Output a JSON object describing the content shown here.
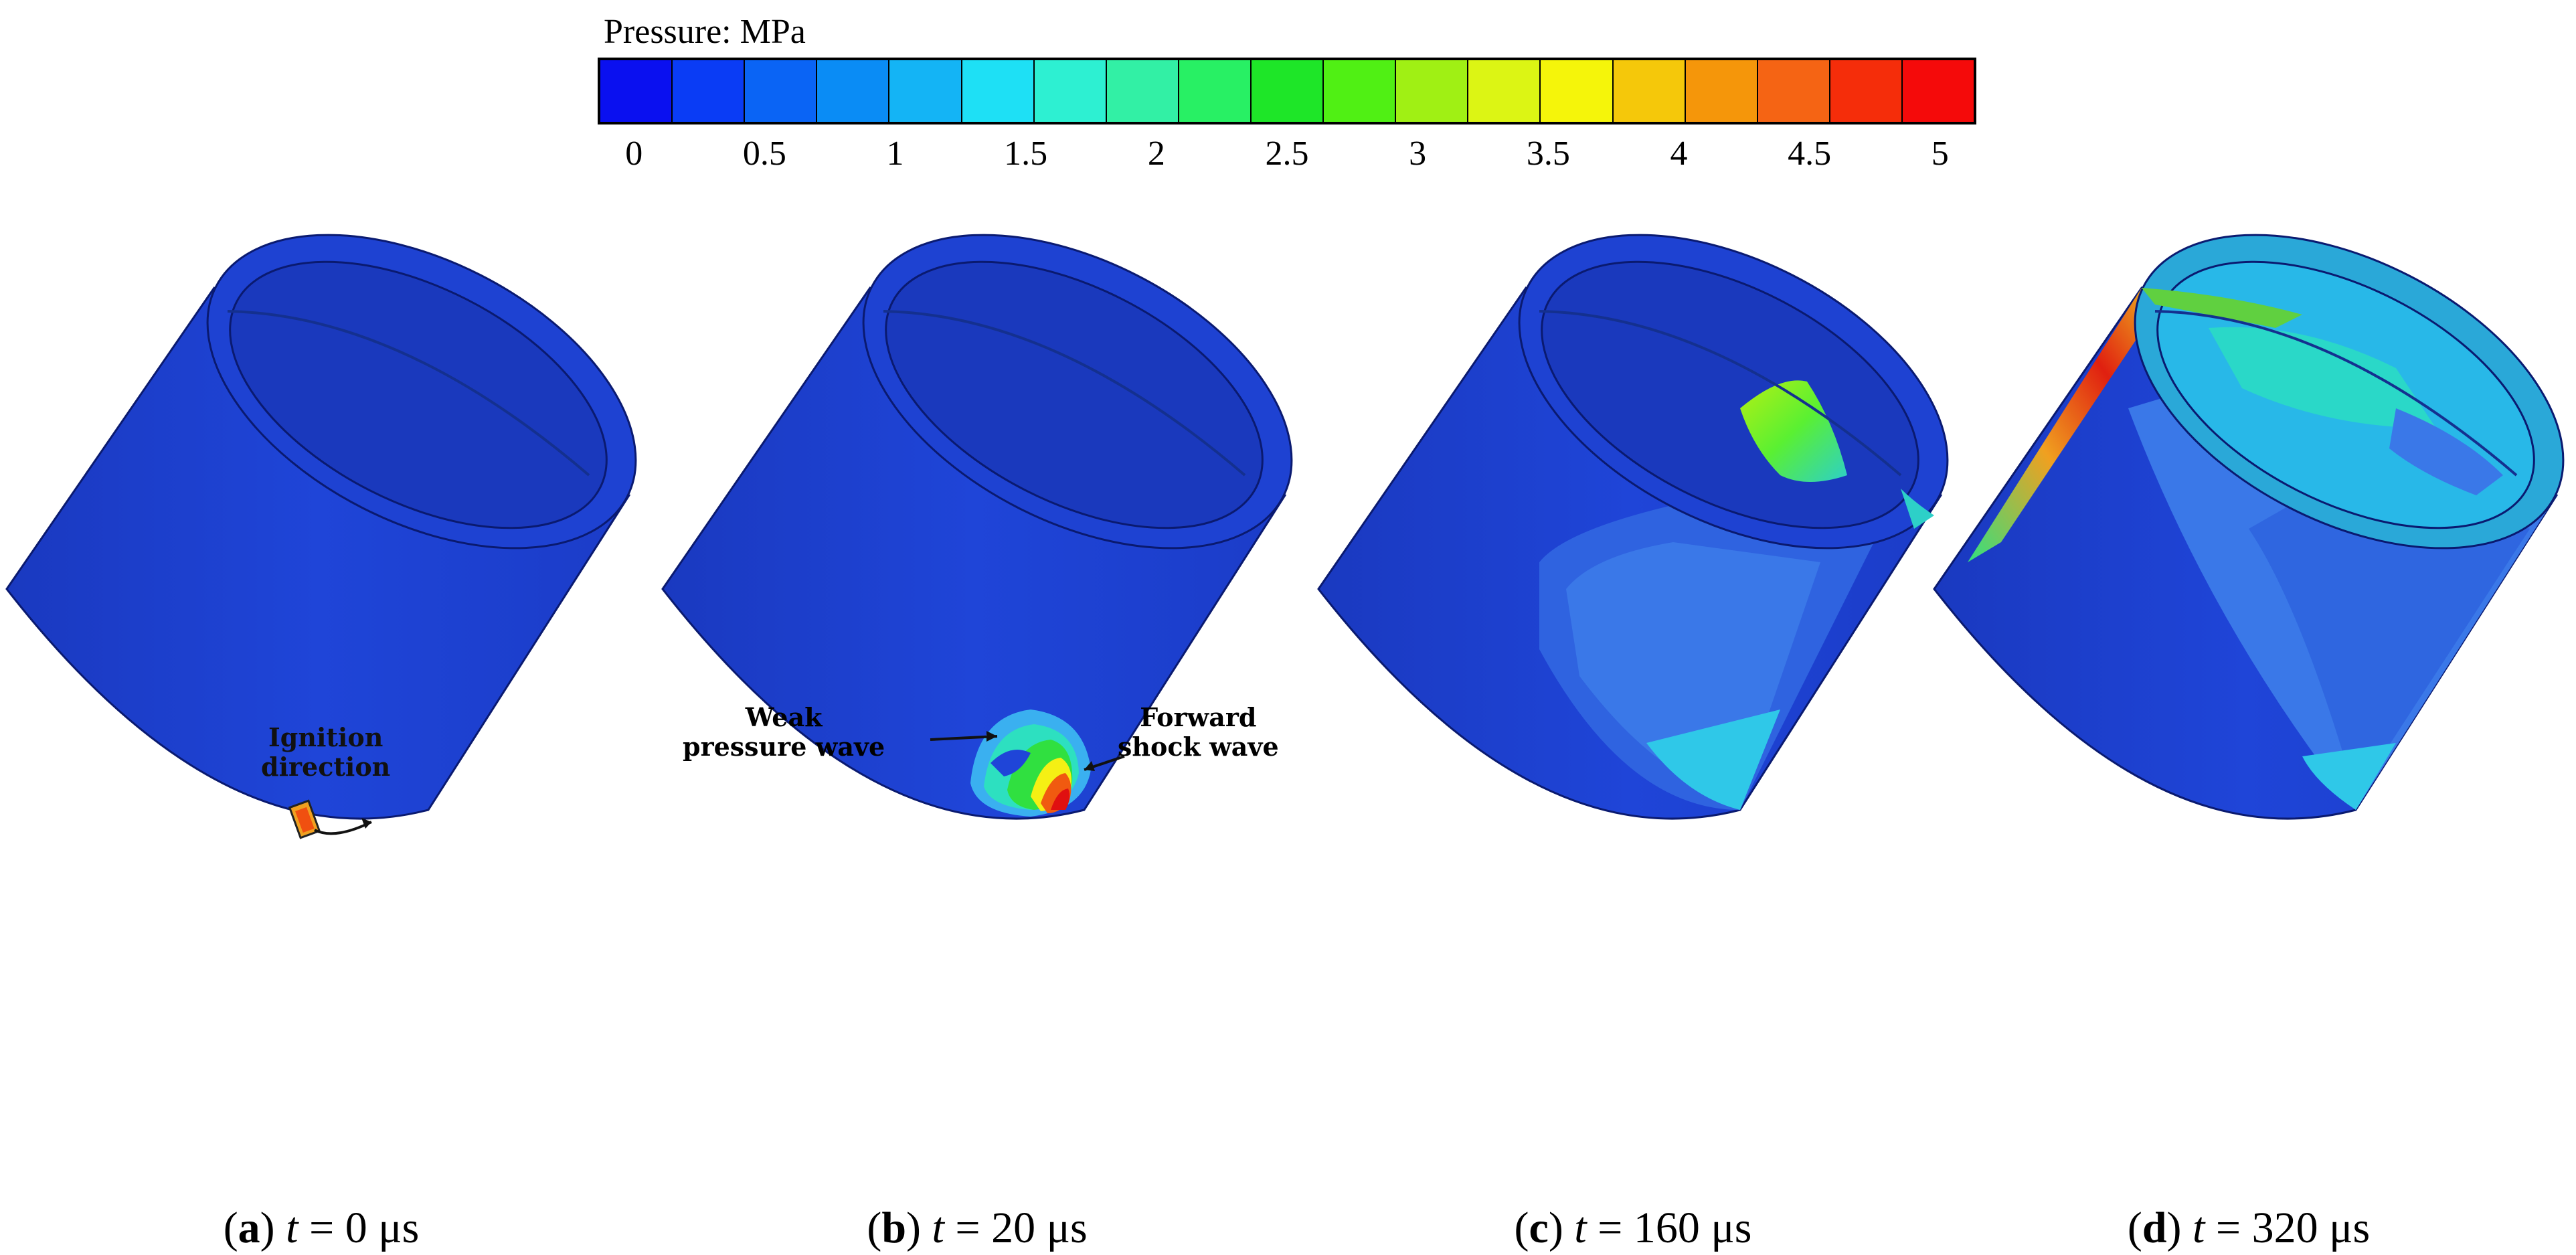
{
  "legend": {
    "title": "Pressure: MPa",
    "ticks": [
      "0",
      "0.5",
      "1",
      "1.5",
      "2",
      "2.5",
      "3",
      "3.5",
      "4",
      "4.5",
      "5"
    ],
    "colors": [
      "#0a10f0",
      "#0a3cf5",
      "#0a64f5",
      "#0a8cf5",
      "#14b4f5",
      "#1ee0f5",
      "#2df0d2",
      "#32f0a5",
      "#28f064",
      "#1ee628",
      "#50f014",
      "#a0f014",
      "#dcf514",
      "#f5f50a",
      "#f5c80a",
      "#f5960a",
      "#f56414",
      "#f52d0a",
      "#f50a0a"
    ]
  },
  "panels": [
    {
      "letter": "a",
      "time": "0 μs"
    },
    {
      "letter": "b",
      "time": "20 μs"
    },
    {
      "letter": "c",
      "time": "160 μs"
    },
    {
      "letter": "d",
      "time": "320 μs"
    }
  ],
  "caption_parts": {
    "open": "(",
    "close": ") ",
    "var": "t",
    "eq": " = "
  },
  "annotations": {
    "ignition": "Ignition\ndirection",
    "weak": "Weak\npressure wave",
    "forward": "Forward\nshock wave"
  },
  "colors": {
    "base_blue": "#1f44d6",
    "dark_blue": "#1631a8",
    "inner_blue": "#1a3bc4"
  }
}
